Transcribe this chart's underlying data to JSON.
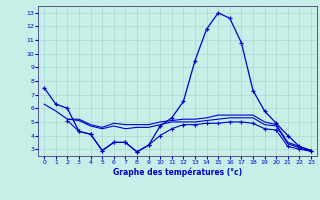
{
  "title": "Graphe des températures (°c)",
  "background_color": "#c8eee8",
  "grid_color": "#a8d8d0",
  "line_color": "#0000cc",
  "xlim": [
    -0.5,
    23.5
  ],
  "ylim": [
    2.5,
    13.5
  ],
  "xticks": [
    0,
    1,
    2,
    3,
    4,
    5,
    6,
    7,
    8,
    9,
    10,
    11,
    12,
    13,
    14,
    15,
    16,
    17,
    18,
    19,
    20,
    21,
    22,
    23
  ],
  "yticks": [
    3,
    4,
    5,
    6,
    7,
    8,
    9,
    10,
    11,
    12,
    13
  ],
  "series1_x": [
    0,
    1,
    2,
    3,
    4,
    5,
    6,
    7,
    8,
    9,
    10,
    11,
    12,
    13,
    14,
    15,
    16,
    17,
    18,
    19,
    20,
    21,
    22,
    23
  ],
  "series1_y": [
    7.5,
    6.3,
    6.0,
    4.3,
    4.1,
    2.9,
    3.5,
    3.5,
    2.8,
    3.3,
    4.7,
    5.3,
    6.5,
    9.5,
    11.8,
    13.0,
    12.6,
    10.8,
    7.3,
    5.8,
    4.9,
    4.0,
    3.2,
    2.9
  ],
  "series2_x": [
    0,
    1,
    2,
    3,
    4,
    5,
    6,
    7,
    8,
    9,
    10,
    11,
    12,
    13,
    14,
    15,
    16,
    17,
    18,
    19,
    20,
    21,
    22,
    23
  ],
  "series2_y": [
    6.3,
    5.8,
    5.2,
    5.2,
    4.8,
    4.6,
    4.9,
    4.8,
    4.8,
    4.8,
    5.0,
    5.1,
    5.2,
    5.2,
    5.3,
    5.5,
    5.5,
    5.5,
    5.5,
    5.0,
    4.8,
    3.5,
    3.2,
    2.9
  ],
  "series3_x": [
    2,
    3,
    4,
    5,
    6,
    7,
    8,
    9,
    10,
    11,
    12,
    13,
    14,
    15,
    16,
    17,
    18,
    19,
    20,
    21,
    22,
    23
  ],
  "series3_y": [
    5.2,
    5.1,
    4.7,
    4.5,
    4.7,
    4.5,
    4.6,
    4.6,
    4.8,
    5.0,
    5.0,
    5.0,
    5.1,
    5.2,
    5.3,
    5.3,
    5.3,
    4.8,
    4.7,
    3.4,
    3.1,
    2.85
  ],
  "series4_x": [
    2,
    3,
    4,
    5,
    6,
    7,
    8,
    9,
    10,
    11,
    12,
    13,
    14,
    15,
    16,
    17,
    18,
    19,
    20,
    21,
    22,
    23
  ],
  "series4_y": [
    5.1,
    4.3,
    4.1,
    2.9,
    3.5,
    3.5,
    2.8,
    3.3,
    4.0,
    4.5,
    4.8,
    4.8,
    4.9,
    4.9,
    5.0,
    5.0,
    4.9,
    4.5,
    4.4,
    3.2,
    3.0,
    2.85
  ]
}
